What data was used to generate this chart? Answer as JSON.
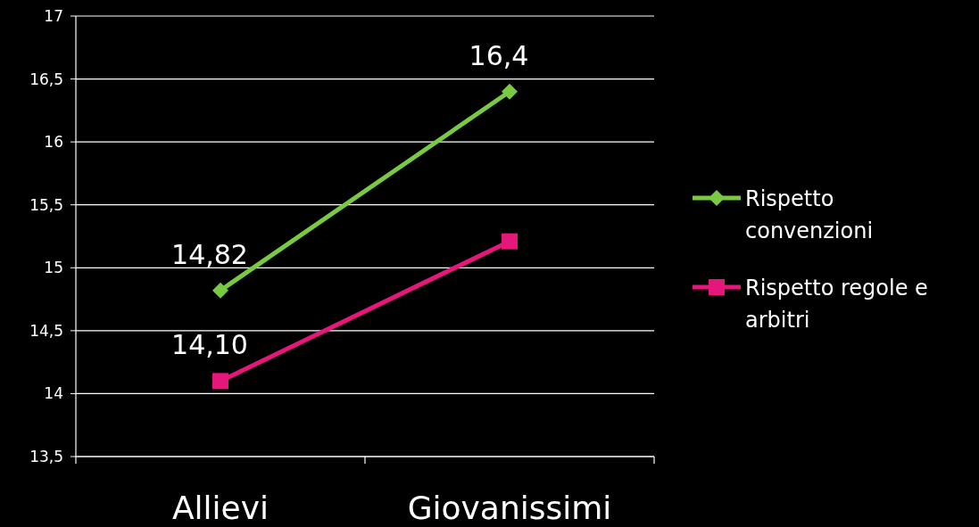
{
  "chart_data": {
    "type": "line",
    "categories": [
      "Allievi",
      "Giovanissimi"
    ],
    "series": [
      {
        "name": "Rispetto convenzioni",
        "color": "#7ac943",
        "marker": "diamond",
        "values": [
          14.82,
          16.4
        ],
        "value_labels": [
          "14,82",
          "16,4"
        ]
      },
      {
        "name": "Rispetto regole e arbitri",
        "color": "#e6177a",
        "marker": "square",
        "values": [
          14.1,
          15.21
        ],
        "value_labels": [
          "14,10",
          null
        ]
      }
    ],
    "ylim": [
      13.5,
      17
    ],
    "yticks": [
      {
        "value": 13.5,
        "label": "13,5"
      },
      14,
      {
        "value": 14.5,
        "label": "14,5"
      },
      15,
      {
        "value": 15.5,
        "label": "15,5"
      },
      16,
      {
        "value": 16.5,
        "label": "16,5"
      },
      17
    ],
    "grid": "y",
    "legend": "right",
    "line_style": "solid"
  }
}
